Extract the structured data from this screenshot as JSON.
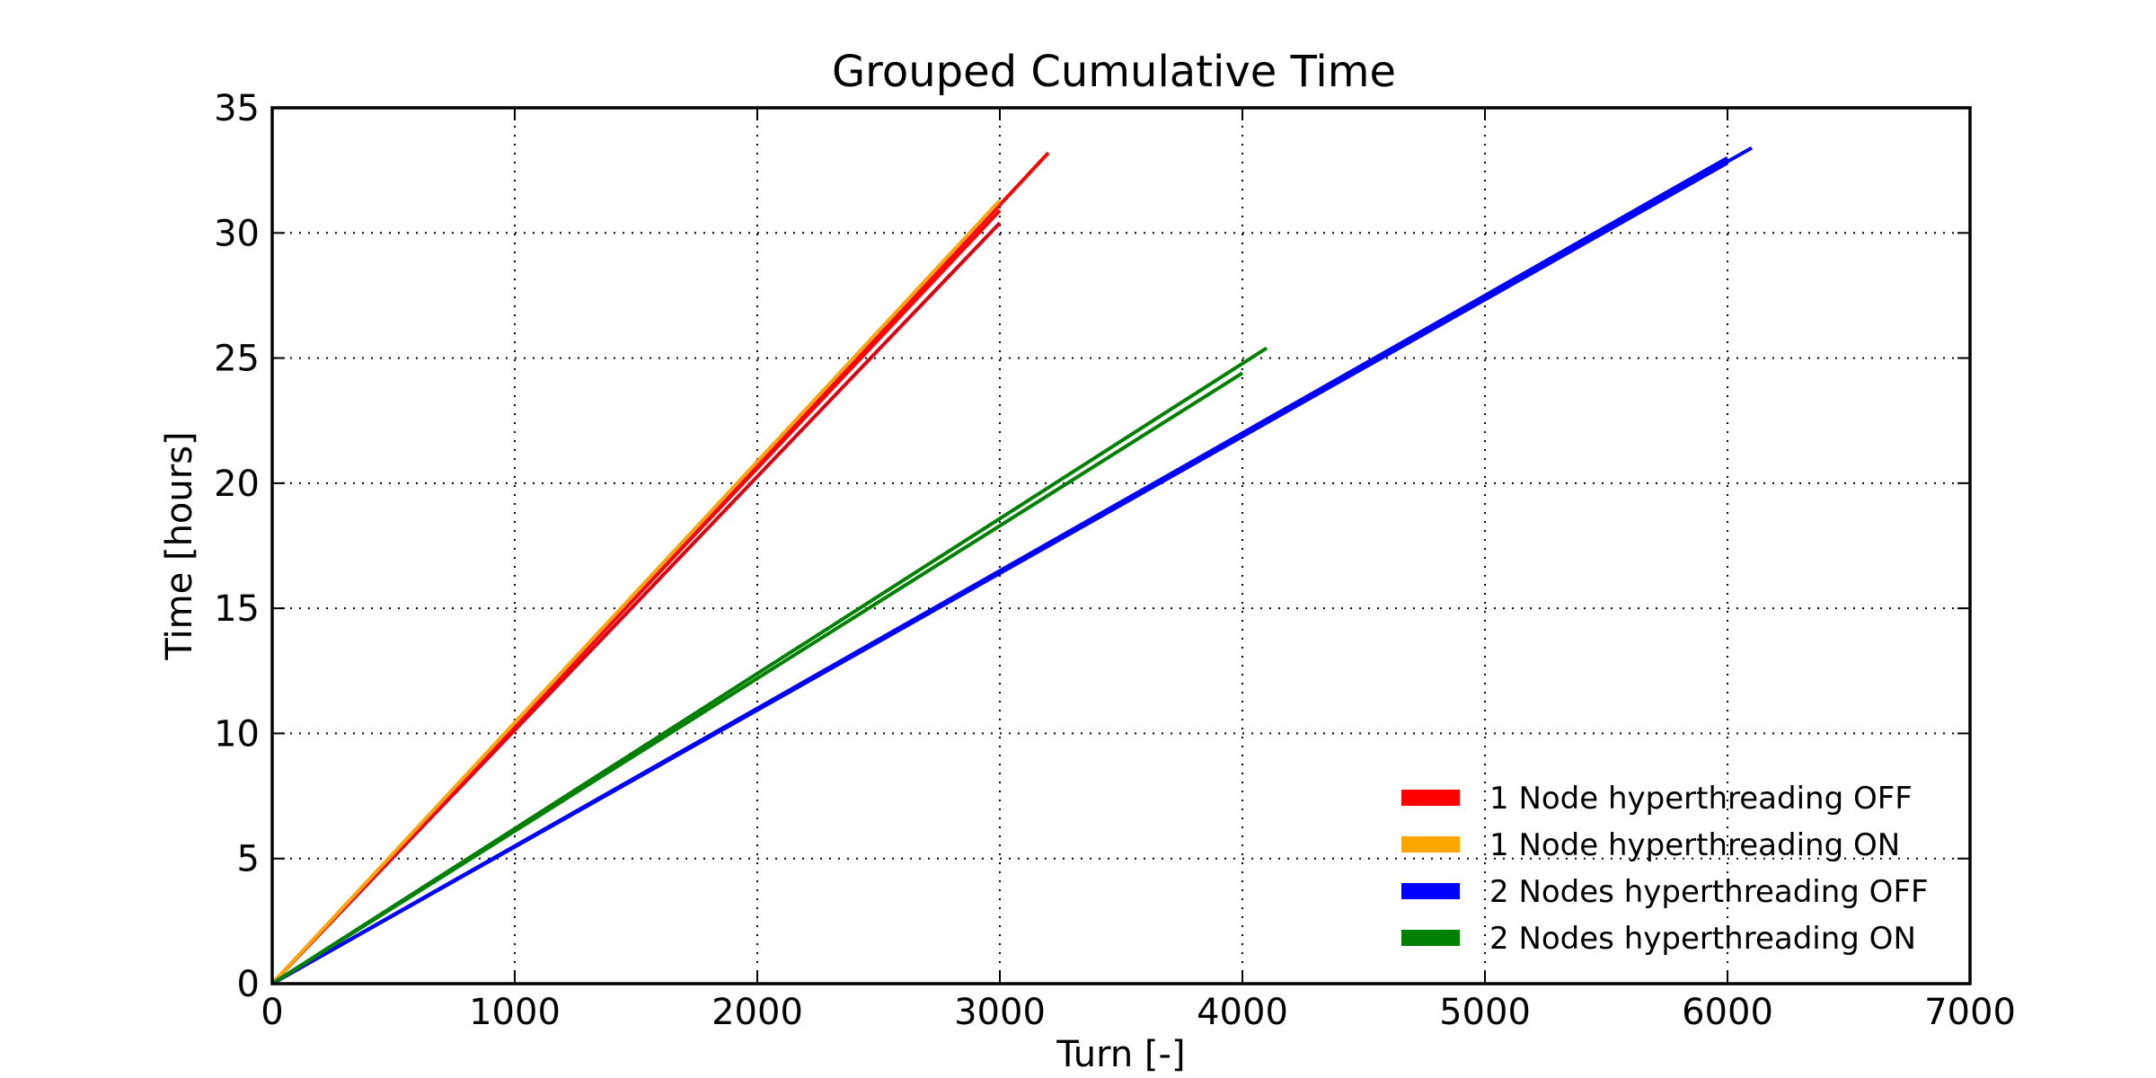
{
  "chart_data": {
    "type": "line",
    "title": "Grouped Cumulative Time",
    "xlabel": "Turn [-]",
    "ylabel": "Time [hours]",
    "xlim": [
      0,
      7000
    ],
    "ylim": [
      0,
      35
    ],
    "xticks": [
      0,
      1000,
      2000,
      3000,
      4000,
      5000,
      6000,
      7000
    ],
    "yticks": [
      0,
      5,
      10,
      15,
      20,
      25,
      30,
      35
    ],
    "grid": true,
    "legend_position": "lower-right",
    "legend": [
      {
        "label": "1 Node hyperthreading OFF",
        "color": "#ff0000"
      },
      {
        "label": "1 Node hyperthreading ON",
        "color": "#ffa500"
      },
      {
        "label": "2 Nodes hyperthreading OFF",
        "color": "#0000ff"
      },
      {
        "label": "2 Nodes hyperthreading ON",
        "color": "#008000"
      }
    ],
    "series": [
      {
        "group": "1 Node hyperthreading OFF",
        "color": "#ff0000",
        "x": [
          0,
          3200
        ],
        "y": [
          0,
          33.2
        ]
      },
      {
        "group": "1 Node hyperthreading OFF",
        "color": "#dd0011",
        "x": [
          0,
          3000
        ],
        "y": [
          0,
          30.4
        ]
      },
      {
        "group": "1 Node hyperthreading OFF",
        "color": "#ff0000",
        "x": [
          0,
          3000
        ],
        "y": [
          0,
          30.9
        ]
      },
      {
        "group": "1 Node hyperthreading ON",
        "color": "#ffa500",
        "x": [
          0,
          3000
        ],
        "y": [
          0,
          31.3
        ]
      },
      {
        "group": "2 Nodes hyperthreading OFF",
        "color": "#0000ff",
        "x": [
          0,
          6100
        ],
        "y": [
          0,
          33.4
        ]
      },
      {
        "group": "2 Nodes hyperthreading OFF",
        "color": "#0000ff",
        "x": [
          0,
          6000
        ],
        "y": [
          0,
          33.0
        ]
      },
      {
        "group": "2 Nodes hyperthreading OFF",
        "color": "#0000ff",
        "x": [
          0,
          6000
        ],
        "y": [
          0,
          32.8
        ]
      },
      {
        "group": "2 Nodes hyperthreading ON",
        "color": "#008000",
        "x": [
          0,
          4100
        ],
        "y": [
          0,
          25.4
        ]
      },
      {
        "group": "2 Nodes hyperthreading ON",
        "color": "#008000",
        "x": [
          0,
          4000
        ],
        "y": [
          0,
          24.4
        ]
      }
    ]
  }
}
